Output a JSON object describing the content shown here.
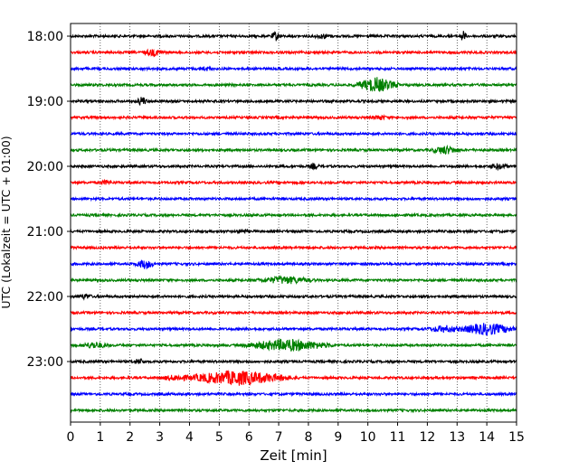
{
  "chart_data": {
    "type": "line",
    "xlabel": "Zeit  [min]",
    "ylabel": "UTC (Lokalzeit = UTC + 01:00)",
    "xlim": [
      0,
      15
    ],
    "x_ticks": [
      "0",
      "1",
      "2",
      "3",
      "4",
      "5",
      "6",
      "7",
      "8",
      "9",
      "10",
      "11",
      "12",
      "13",
      "14",
      "15"
    ],
    "y_ticks": [
      "18:00",
      "19:00",
      "20:00",
      "21:00",
      "22:00",
      "23:00"
    ],
    "grid": "vertical dotted",
    "trace_interval_min": 15,
    "colors": [
      "#000000",
      "#ff0000",
      "#0000ff",
      "#008000"
    ],
    "series": [
      {
        "start": "18:00",
        "color": "#000000",
        "events": [
          {
            "x": 6.9,
            "amp": 5,
            "dur": 0.2
          },
          {
            "x": 13.2,
            "amp": 6,
            "dur": 0.15
          },
          {
            "x": 8.5,
            "amp": 2.5,
            "dur": 0.4
          }
        ]
      },
      {
        "start": "18:15",
        "color": "#ff0000",
        "events": [
          {
            "x": 2.8,
            "amp": 3.5,
            "dur": 0.5
          }
        ]
      },
      {
        "start": "18:30",
        "color": "#0000ff",
        "events": [
          {
            "x": 4.5,
            "amp": 2,
            "dur": 0.4
          }
        ]
      },
      {
        "start": "18:45",
        "color": "#008000",
        "events": [
          {
            "x": 10.3,
            "amp": 8,
            "dur": 0.9
          }
        ]
      },
      {
        "start": "19:00",
        "color": "#000000",
        "events": [
          {
            "x": 2.4,
            "amp": 5.5,
            "dur": 0.2
          }
        ]
      },
      {
        "start": "19:15",
        "color": "#ff0000",
        "events": [
          {
            "x": 10.4,
            "amp": 2.5,
            "dur": 0.3
          }
        ]
      },
      {
        "start": "19:30",
        "color": "#0000ff",
        "events": []
      },
      {
        "start": "19:45",
        "color": "#008000",
        "events": [
          {
            "x": 12.6,
            "amp": 4.5,
            "dur": 0.6
          }
        ]
      },
      {
        "start": "20:00",
        "color": "#000000",
        "events": [
          {
            "x": 8.2,
            "amp": 3,
            "dur": 0.2
          },
          {
            "x": 14.4,
            "amp": 3,
            "dur": 0.4
          }
        ]
      },
      {
        "start": "20:15",
        "color": "#ff0000",
        "events": [
          {
            "x": 1.2,
            "amp": 2,
            "dur": 0.3
          }
        ]
      },
      {
        "start": "20:30",
        "color": "#0000ff",
        "events": []
      },
      {
        "start": "20:45",
        "color": "#008000",
        "events": []
      },
      {
        "start": "21:00",
        "color": "#000000",
        "events": [
          {
            "x": 5.8,
            "amp": 2,
            "dur": 0.3
          }
        ]
      },
      {
        "start": "21:15",
        "color": "#ff0000",
        "events": []
      },
      {
        "start": "21:30",
        "color": "#0000ff",
        "events": [
          {
            "x": 2.5,
            "amp": 5,
            "dur": 0.4
          }
        ]
      },
      {
        "start": "21:45",
        "color": "#008000",
        "events": [
          {
            "x": 7.2,
            "amp": 4,
            "dur": 1.2
          }
        ]
      },
      {
        "start": "22:00",
        "color": "#000000",
        "events": [
          {
            "x": 0.5,
            "amp": 2.5,
            "dur": 0.3
          }
        ]
      },
      {
        "start": "22:15",
        "color": "#ff0000",
        "events": []
      },
      {
        "start": "22:30",
        "color": "#0000ff",
        "events": [
          {
            "x": 12.6,
            "amp": 3.5,
            "dur": 0.8
          },
          {
            "x": 14.0,
            "amp": 6.5,
            "dur": 1.2
          }
        ]
      },
      {
        "start": "22:45",
        "color": "#008000",
        "events": [
          {
            "x": 0.8,
            "amp": 3.5,
            "dur": 0.6
          },
          {
            "x": 7.3,
            "amp": 6.5,
            "dur": 1.8
          }
        ]
      },
      {
        "start": "23:00",
        "color": "#000000",
        "events": [
          {
            "x": 2.3,
            "amp": 3,
            "dur": 0.3
          }
        ]
      },
      {
        "start": "23:15",
        "color": "#ff0000",
        "events": [
          {
            "x": 5.6,
            "amp": 8,
            "dur": 2.2
          },
          {
            "x": 3.6,
            "amp": 3,
            "dur": 0.8
          }
        ]
      },
      {
        "start": "23:30",
        "color": "#0000ff",
        "events": []
      },
      {
        "start": "23:45",
        "color": "#008000",
        "events": []
      }
    ]
  }
}
